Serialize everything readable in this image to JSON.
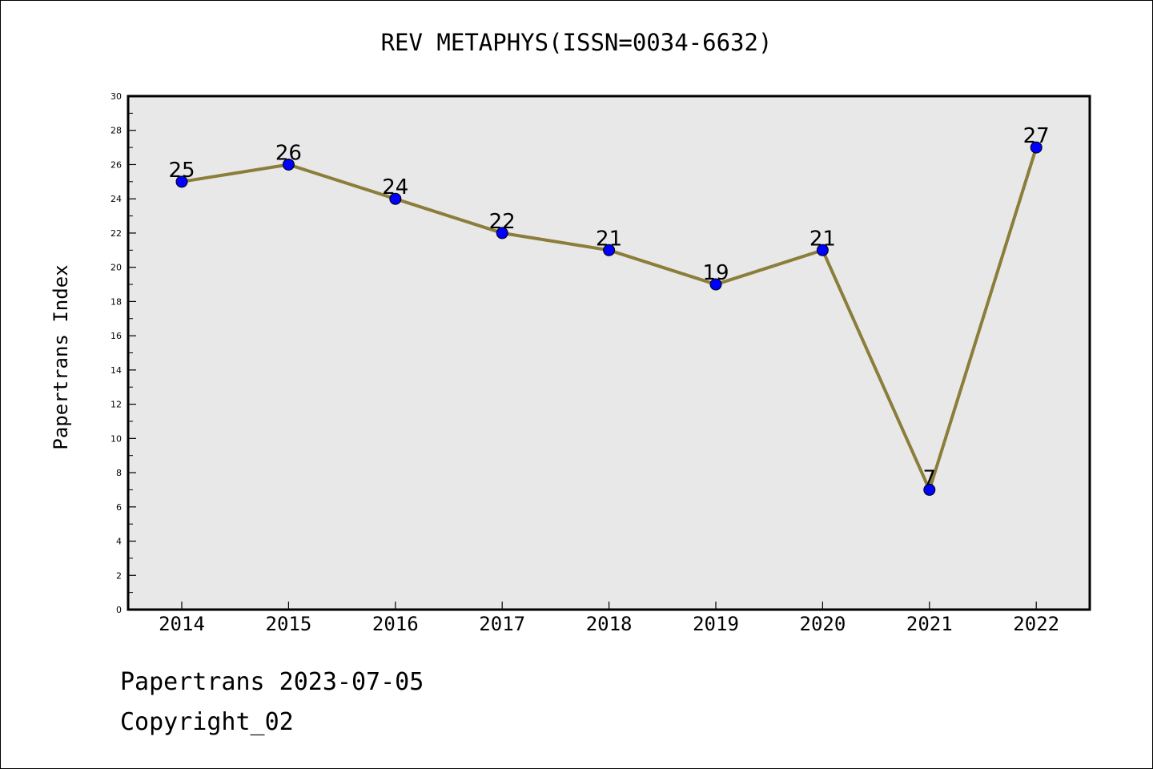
{
  "title": "REV METAPHYS(ISSN=0034-6632)",
  "ylabel": "Papertrans Index",
  "footer": {
    "line1": "Papertrans 2023-07-05",
    "line2": "Copyright_02"
  },
  "colors": {
    "line": "#8B7D3A",
    "marker": "#0000FF",
    "plot_bg": "#E8E8E8"
  },
  "chart_data": {
    "type": "line",
    "title": "REV METAPHYS(ISSN=0034-6632)",
    "xlabel": "",
    "ylabel": "Papertrans Index",
    "categories": [
      "2014",
      "2015",
      "2016",
      "2017",
      "2018",
      "2019",
      "2020",
      "2021",
      "2022"
    ],
    "values": [
      25,
      26,
      24,
      22,
      21,
      19,
      21,
      7,
      27
    ],
    "data_labels": [
      "25",
      "26",
      "24",
      "22",
      "21",
      "19",
      "21",
      "7",
      "27"
    ],
    "ylim": [
      0,
      30
    ],
    "yticks": [
      "0",
      "2",
      "4",
      "6",
      "8",
      "10",
      "12",
      "14",
      "16",
      "18",
      "20",
      "22",
      "24",
      "26",
      "28",
      "30"
    ],
    "grid": false,
    "legend": "none"
  }
}
